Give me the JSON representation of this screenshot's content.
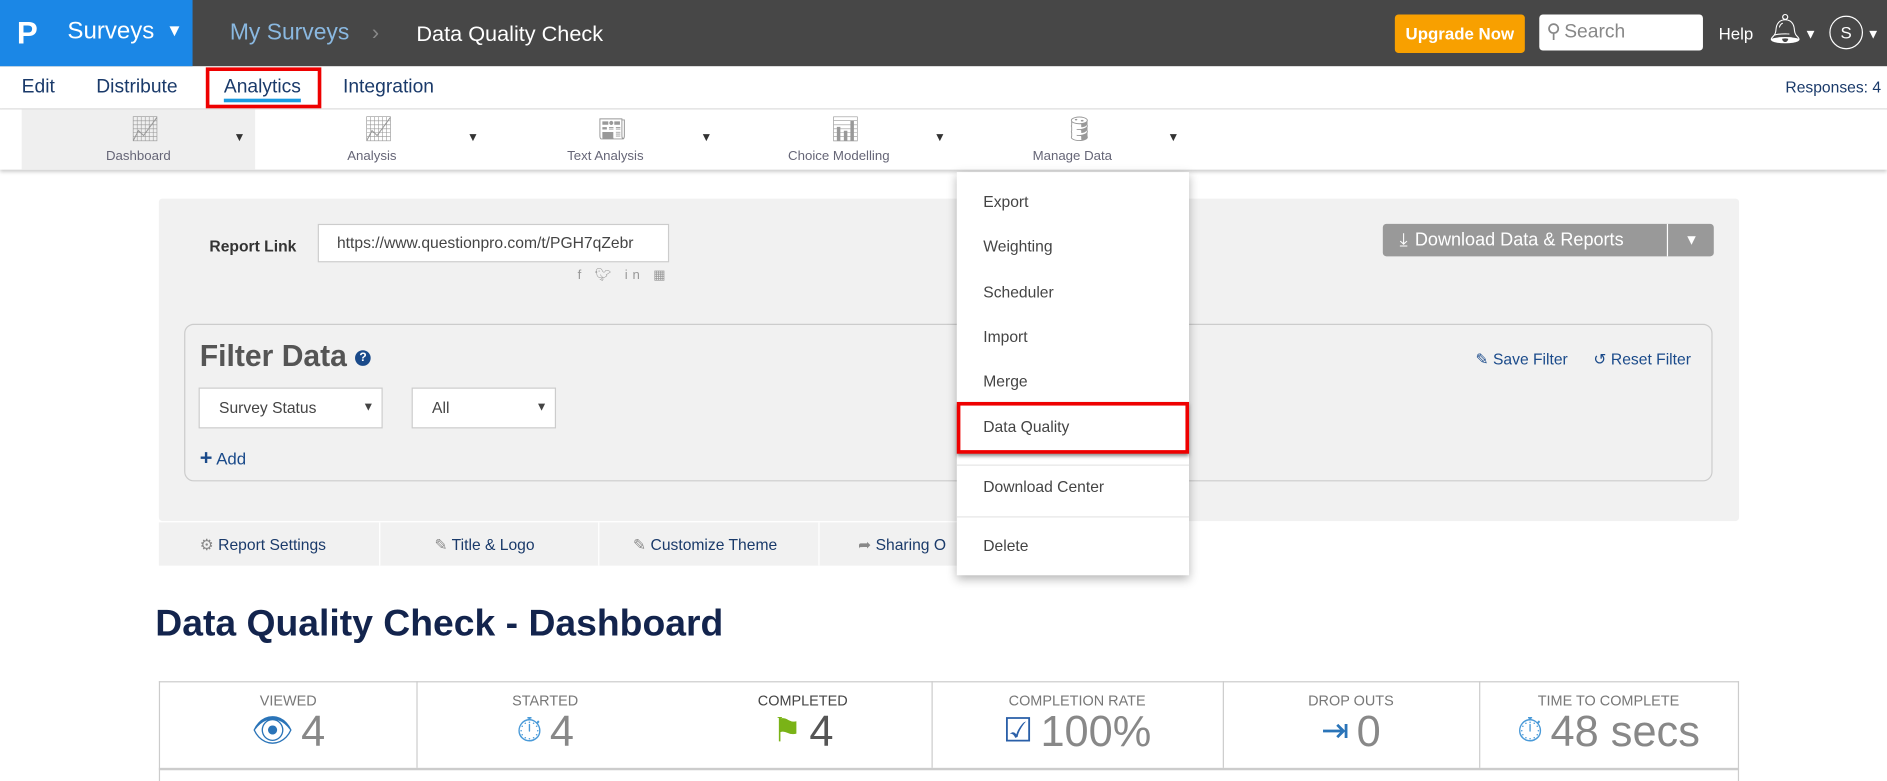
{
  "header": {
    "logo": "P",
    "app": "Surveys",
    "breadcrumb": [
      "My Surveys",
      "Data Quality Check"
    ],
    "upgrade": "Upgrade Now",
    "search_placeholder": "Search",
    "help": "Help",
    "avatar": "S"
  },
  "nav": {
    "items": [
      "Edit",
      "Distribute",
      "Analytics",
      "Integration"
    ],
    "active": "Analytics",
    "responses": "Responses: 4"
  },
  "toolbar": {
    "items": [
      {
        "label": "Dashboard",
        "icon": "line-chart-icon"
      },
      {
        "label": "Analysis",
        "icon": "analysis-chart-icon"
      },
      {
        "label": "Text Analysis",
        "icon": "document-icon"
      },
      {
        "label": "Choice Modelling",
        "icon": "scatter-chart-icon"
      },
      {
        "label": "Manage Data",
        "icon": "database-icon"
      }
    ]
  },
  "report": {
    "label": "Report Link",
    "url": "https://www.questionpro.com/t/PGH7qZebr",
    "download": "Download Data & Reports"
  },
  "filter": {
    "title": "Filter Data",
    "save": "Save Filter",
    "reset": "Reset Filter",
    "select1": "Survey Status",
    "select2": "All",
    "add": "Add"
  },
  "tabs": [
    "Report Settings",
    "Title & Logo",
    "Customize Theme",
    "Sharing O"
  ],
  "menu": {
    "items": [
      "Export",
      "Weighting",
      "Scheduler",
      "Import",
      "Merge",
      "Data Quality",
      "Download Center",
      "Delete"
    ],
    "highlighted": "Data Quality"
  },
  "dashboard": {
    "title": "Data Quality Check - Dashboard"
  },
  "stats": [
    {
      "label": "VIEWED",
      "value": "4"
    },
    {
      "label": "STARTED",
      "value": "4"
    },
    {
      "label": "COMPLETED",
      "value": "4"
    },
    {
      "label": "COMPLETION RATE",
      "value": "100%"
    },
    {
      "label": "DROP OUTS",
      "value": "0"
    },
    {
      "label": "TIME TO COMPLETE",
      "value": "48 secs"
    }
  ],
  "colors": {
    "accent": "#1b87e6",
    "upgrade": "#f8a000",
    "highlight": "#e00000",
    "flag": "#7ab317"
  }
}
